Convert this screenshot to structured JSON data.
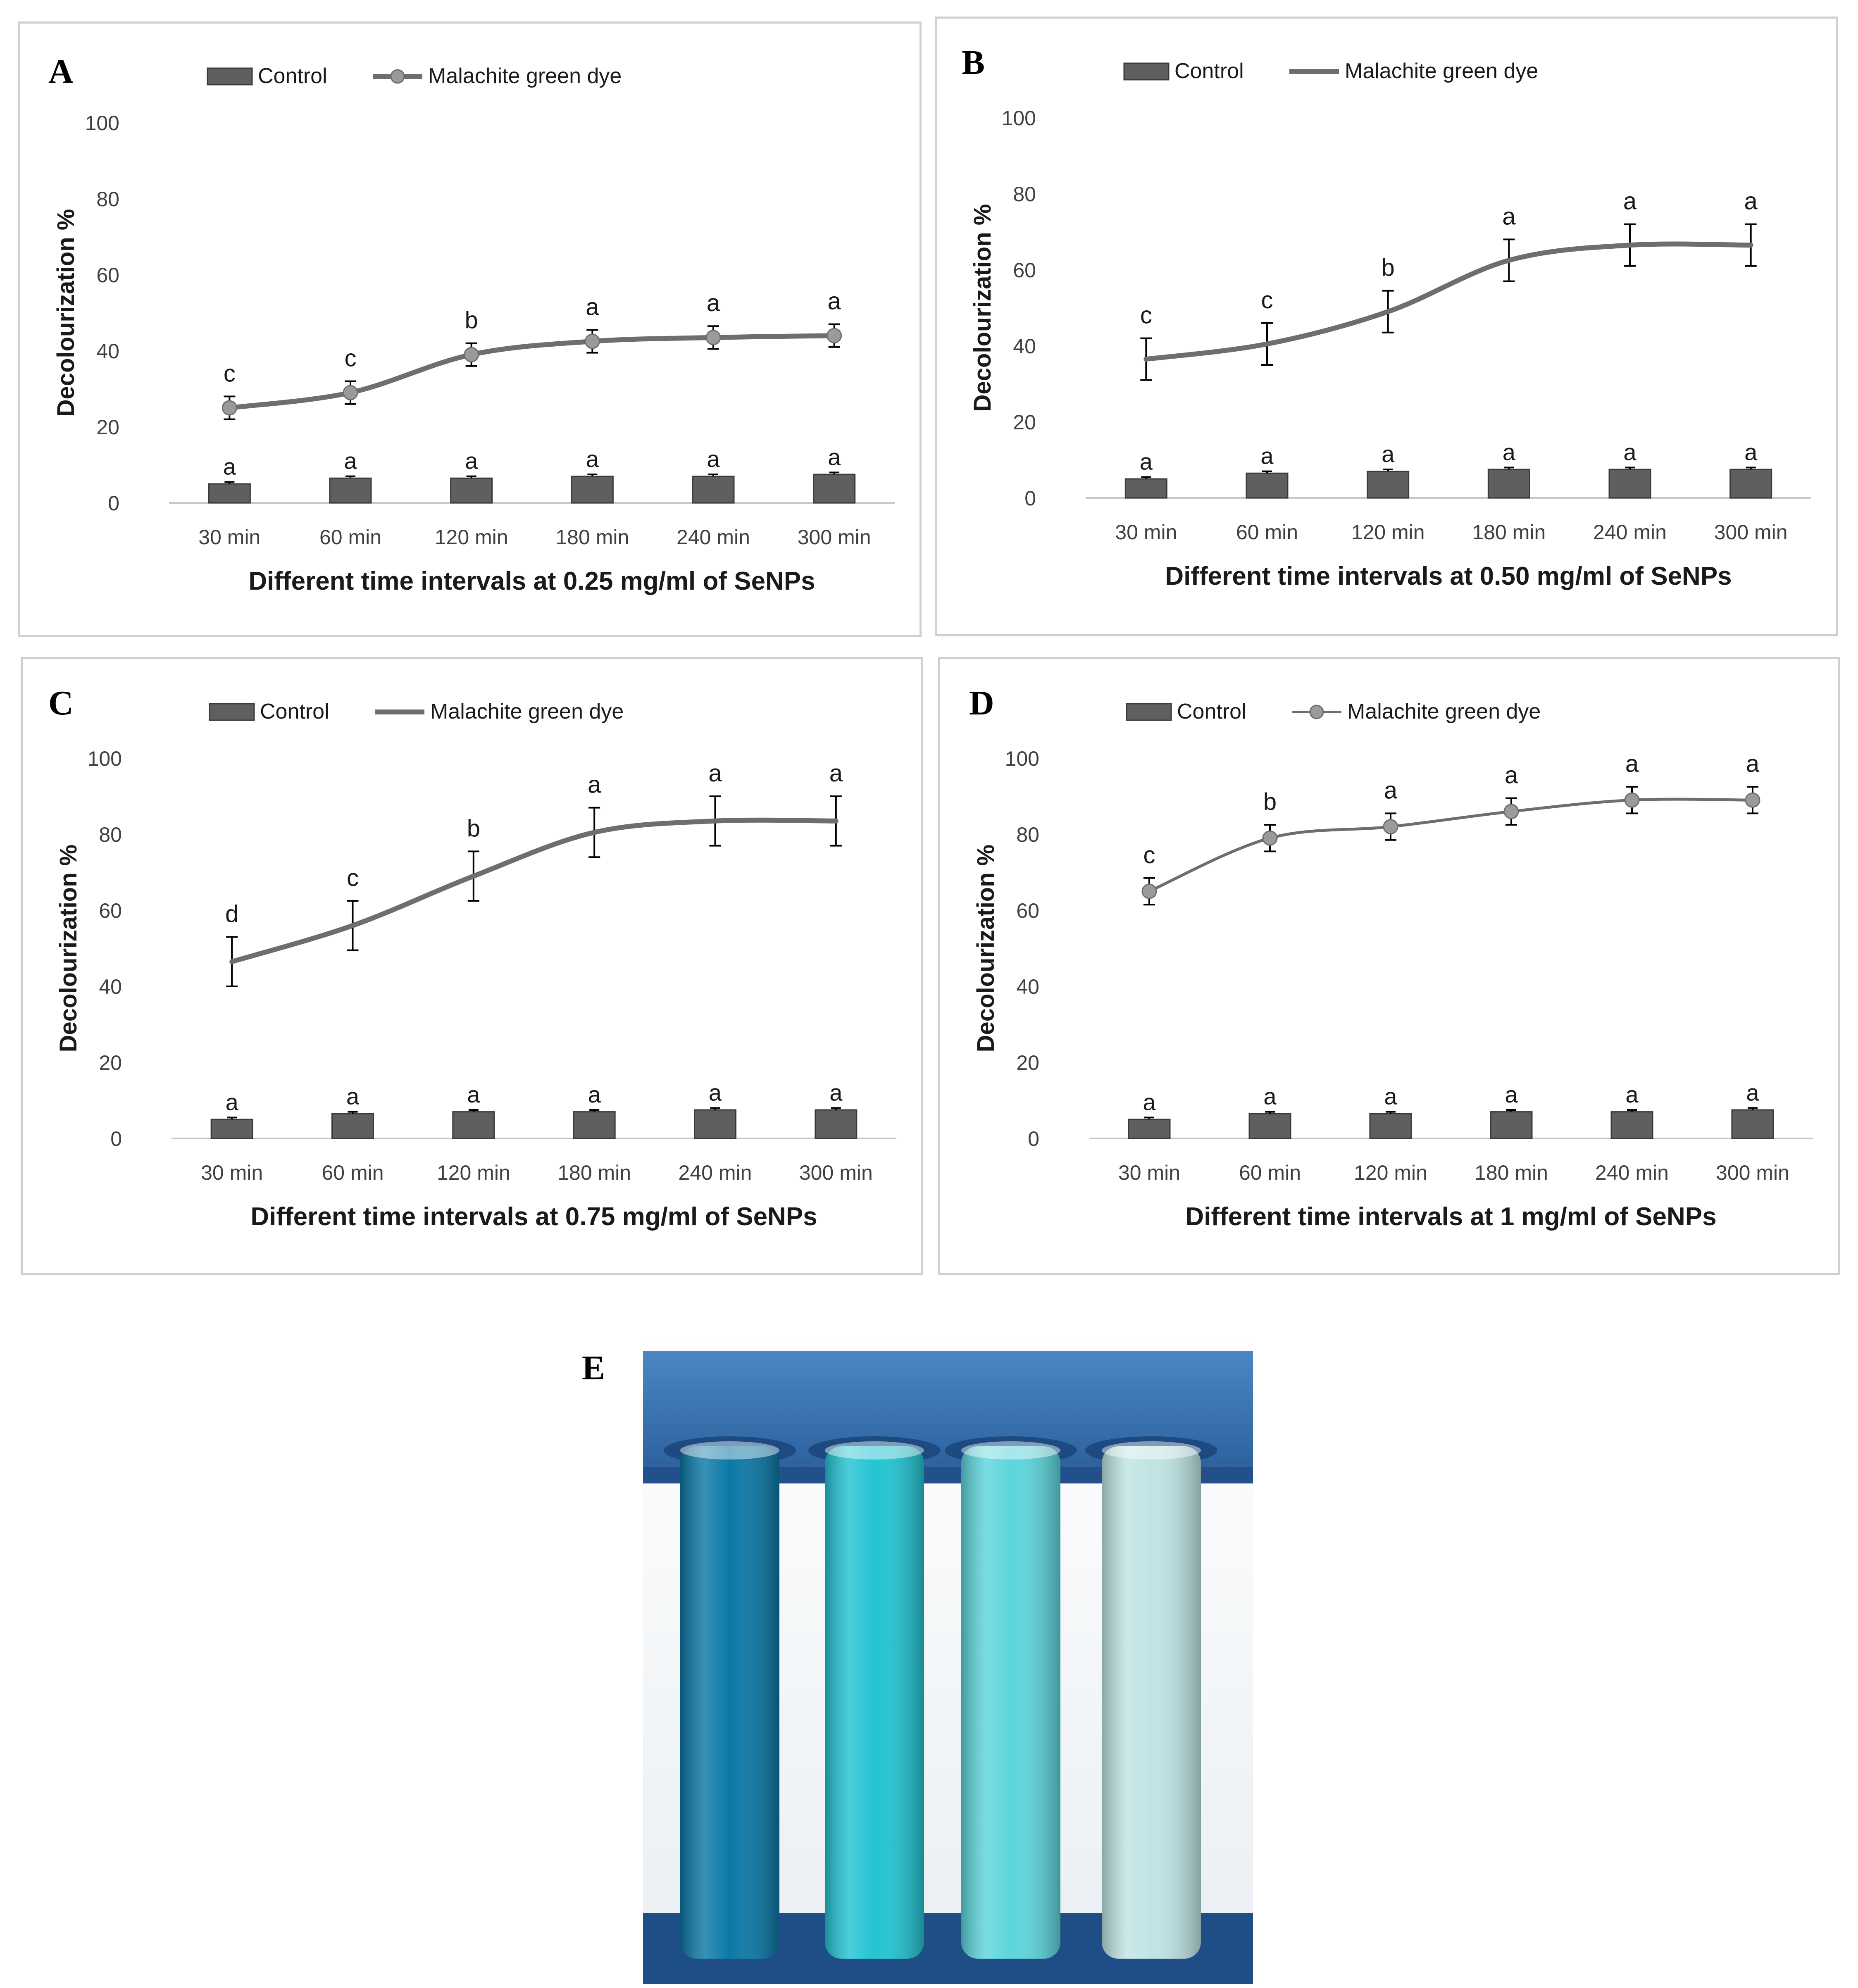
{
  "colors": {
    "bar": "#5f5f5f",
    "bar_edge": "#3a3a3a",
    "line": "#6e6e6e",
    "marker": "#9a9a9a",
    "axis_text": "#404040",
    "tube_dark": "#0b78a6",
    "tube_cyan": "#23c4d3",
    "tube_light": "#5cd6dc",
    "tube_pale": "#bfe4e4",
    "rack_blue": "#2f6fb4"
  },
  "legend": {
    "control": "Control",
    "dye": "Malachite green dye"
  },
  "chart_data": [
    {
      "panel": "A",
      "type": "bar",
      "title": "",
      "ylabel": "Decolourization %",
      "xlabel": "Different time intervals at 0.25 mg/ml of SeNPs",
      "ylim": [
        0,
        100
      ],
      "yticks": [
        0,
        20,
        40,
        60,
        80,
        100
      ],
      "categories": [
        "30 min",
        "60 min",
        "120 min",
        "180 min",
        "240 min",
        "300 min"
      ],
      "line_markers": true,
      "line_thin": false,
      "series": [
        {
          "name": "Control",
          "type": "bar",
          "values": [
            5,
            6.5,
            6.5,
            7,
            7,
            7.5
          ],
          "errors": [
            0.5,
            0.5,
            0.5,
            0.5,
            0.5,
            0.5
          ],
          "letters": [
            "a",
            "a",
            "a",
            "a",
            "a",
            "a"
          ]
        },
        {
          "name": "Malachite green dye",
          "type": "line",
          "values": [
            25,
            29,
            39,
            42.5,
            43.5,
            44
          ],
          "errors": [
            3,
            3,
            3,
            3,
            3,
            3
          ],
          "letters": [
            "c",
            "c",
            "b",
            "a",
            "a",
            "a"
          ]
        }
      ]
    },
    {
      "panel": "B",
      "type": "bar",
      "title": "",
      "ylabel": "Decolourization %",
      "xlabel": "Different time intervals at 0.50 mg/ml of SeNPs",
      "ylim": [
        0,
        100
      ],
      "yticks": [
        0,
        20,
        40,
        60,
        80,
        100
      ],
      "categories": [
        "30 min",
        "60 min",
        "120 min",
        "180 min",
        "240 min",
        "300 min"
      ],
      "line_markers": false,
      "line_thin": false,
      "series": [
        {
          "name": "Control",
          "type": "bar",
          "values": [
            5,
            6.5,
            7,
            7.5,
            7.5,
            7.5
          ],
          "errors": [
            0.5,
            0.5,
            0.5,
            0.5,
            0.5,
            0.5
          ],
          "letters": [
            "a",
            "a",
            "a",
            "a",
            "a",
            "a"
          ]
        },
        {
          "name": "Malachite green dye",
          "type": "line",
          "values": [
            36.5,
            40.5,
            49,
            62.5,
            66.5,
            66.5
          ],
          "errors": [
            5.5,
            5.5,
            5.5,
            5.5,
            5.5,
            5.5
          ],
          "letters": [
            "c",
            "c",
            "b",
            "a",
            "a",
            "a"
          ]
        }
      ]
    },
    {
      "panel": "C",
      "type": "bar",
      "title": "",
      "ylabel": "Decolourization %",
      "xlabel": "Different time intervals at 0.75 mg/ml of SeNPs",
      "ylim": [
        0,
        100
      ],
      "yticks": [
        0,
        20,
        40,
        60,
        80,
        100
      ],
      "categories": [
        "30 min",
        "60 min",
        "120 min",
        "180 min",
        "240 min",
        "300 min"
      ],
      "line_markers": false,
      "line_thin": false,
      "series": [
        {
          "name": "Control",
          "type": "bar",
          "values": [
            5,
            6.5,
            7,
            7,
            7.5,
            7.5
          ],
          "errors": [
            0.5,
            0.5,
            0.5,
            0.5,
            0.5,
            0.5
          ],
          "letters": [
            "a",
            "a",
            "a",
            "a",
            "a",
            "a"
          ]
        },
        {
          "name": "Malachite green dye",
          "type": "line",
          "values": [
            46.5,
            56,
            69,
            80.5,
            83.5,
            83.5
          ],
          "errors": [
            6.5,
            6.5,
            6.5,
            6.5,
            6.5,
            6.5
          ],
          "letters": [
            "d",
            "c",
            "b",
            "a",
            "a",
            "a"
          ]
        }
      ]
    },
    {
      "panel": "D",
      "type": "bar",
      "title": "",
      "ylabel": "Decolourization %",
      "xlabel": "Different time intervals at 1 mg/ml of SeNPs",
      "ylim": [
        0,
        100
      ],
      "yticks": [
        0,
        20,
        40,
        60,
        80,
        100
      ],
      "categories": [
        "30 min",
        "60 min",
        "120 min",
        "180 min",
        "240 min",
        "300 min"
      ],
      "line_markers": true,
      "line_thin": true,
      "series": [
        {
          "name": "Control",
          "type": "bar",
          "values": [
            5,
            6.5,
            6.5,
            7,
            7,
            7.5
          ],
          "errors": [
            0.5,
            0.5,
            0.5,
            0.5,
            0.5,
            0.5
          ],
          "letters": [
            "a",
            "a",
            "a",
            "a",
            "a",
            "a"
          ]
        },
        {
          "name": "Malachite green dye",
          "type": "line",
          "values": [
            65,
            79,
            82,
            86,
            89,
            89
          ],
          "errors": [
            3.5,
            3.5,
            3.5,
            3.5,
            3.5,
            3.5
          ],
          "letters": [
            "c",
            "b",
            "a",
            "a",
            "a",
            "a"
          ]
        }
      ]
    }
  ],
  "photo": {
    "panel": "E",
    "tubes": [
      "tube_dark",
      "tube_cyan",
      "tube_light",
      "tube_pale"
    ]
  }
}
